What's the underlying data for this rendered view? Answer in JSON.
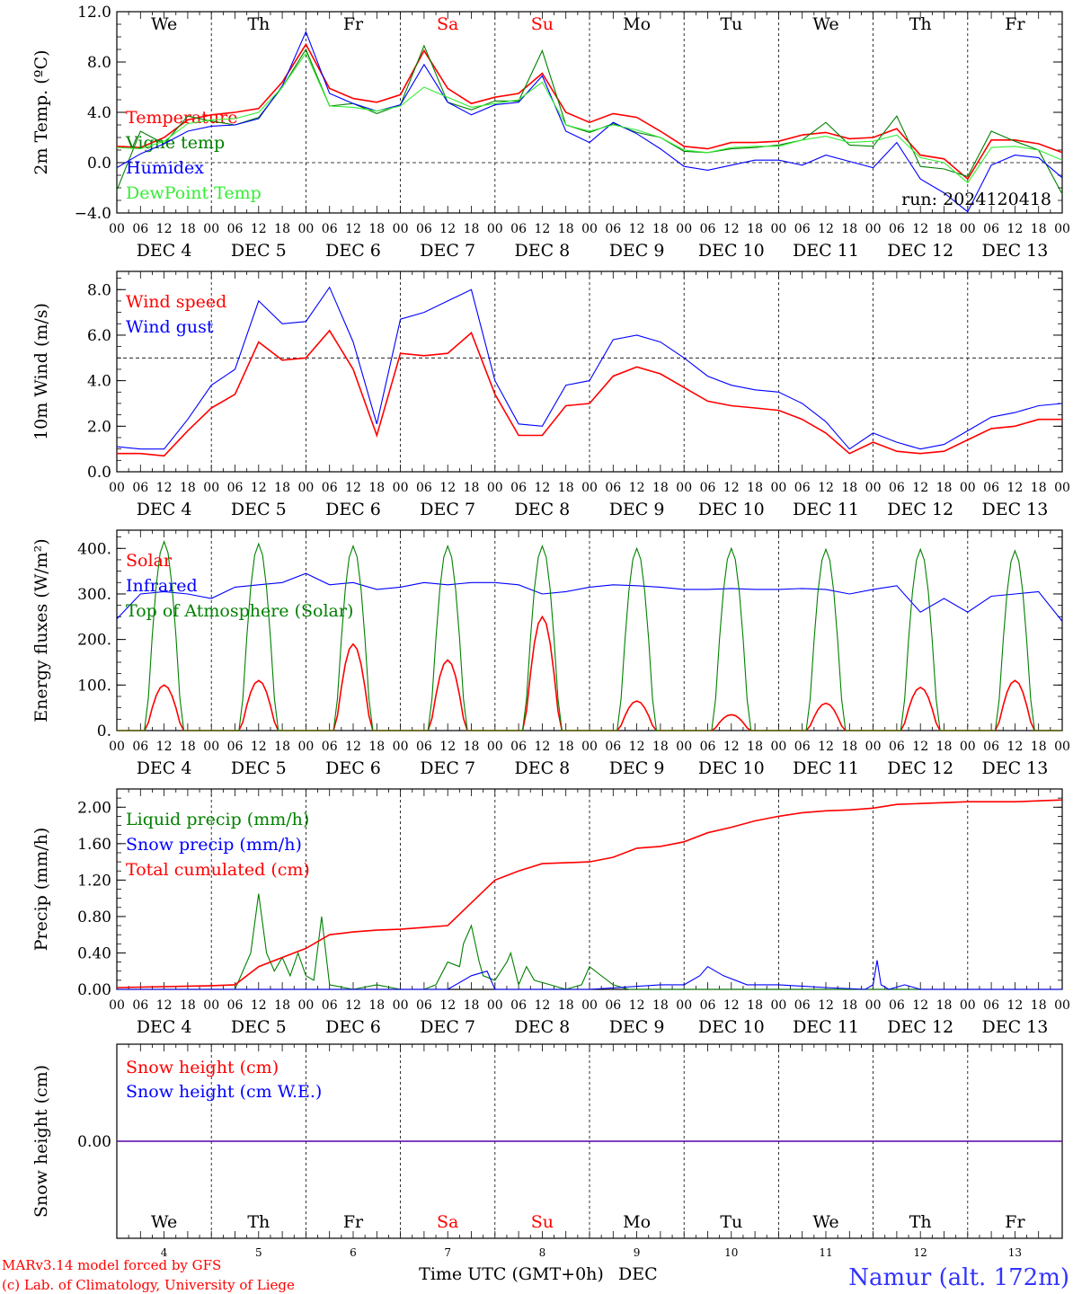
{
  "station_label": "Namur (alt. 172m)",
  "run_label": "run: 2024120418",
  "credits": [
    "MARv3.14 model forced by GFS",
    "(c) Lab. of Climatology, University of Liege"
  ],
  "xaxis_label": "Time UTC (GMT+0h)",
  "month_label": "DEC",
  "days": [
    "DEC 4",
    "DEC 5",
    "DEC 6",
    "DEC 7",
    "DEC 8",
    "DEC 9",
    "DEC 10",
    "DEC 11",
    "DEC 12",
    "DEC 13"
  ],
  "day_numbers": [
    "4",
    "5",
    "6",
    "7",
    "8",
    "9",
    "10",
    "11",
    "12",
    "13"
  ],
  "weekdays": [
    "We",
    "Th",
    "Fr",
    "Sa",
    "Su",
    "Mo",
    "Tu",
    "We",
    "Th",
    "Fr"
  ],
  "hour_ticks": [
    "00",
    "06",
    "12",
    "18"
  ],
  "end_tick": "00",
  "colors": {
    "weekday": "#000000",
    "weekend": "#ff0000",
    "red": "#ff0000",
    "darkgreen": "#008000",
    "blue": "#0000ff",
    "lightgreen": "#33ee33",
    "station": "#3333ff"
  },
  "chart_data": [
    {
      "type": "line",
      "ylabel": "2m Temp. (ºC)",
      "ylim": [
        -4,
        12
      ],
      "yticks": [
        "-4.0",
        "0.0",
        "4.0",
        "8.0",
        "12.0"
      ],
      "reference_line": 0,
      "x_unit": "hours since DEC 4 00 UTC",
      "x": [
        0,
        6,
        12,
        18,
        24,
        30,
        36,
        42,
        48,
        54,
        60,
        66,
        72,
        78,
        84,
        90,
        96,
        102,
        108,
        114,
        120,
        126,
        132,
        138,
        144,
        150,
        156,
        162,
        168,
        174,
        180,
        186,
        192,
        198,
        204,
        210,
        216,
        222,
        228,
        234,
        240
      ],
      "series": [
        {
          "name": "Temperature",
          "color": "red",
          "values": [
            1.3,
            1.2,
            2.0,
            3.4,
            3.8,
            4.0,
            4.3,
            6.4,
            9.4,
            5.9,
            5.1,
            4.8,
            5.4,
            8.9,
            5.9,
            4.7,
            5.2,
            5.5,
            7.1,
            4.0,
            3.2,
            3.9,
            3.6,
            2.5,
            1.3,
            1.1,
            1.6,
            1.6,
            1.7,
            2.2,
            2.4,
            1.9,
            2.0,
            2.7,
            0.6,
            0.3,
            -1.3,
            1.8,
            1.8,
            1.5,
            0.8
          ]
        },
        {
          "name": "Vigne temp",
          "color": "darkgreen",
          "values": [
            -2.2,
            2.5,
            1.5,
            3.7,
            3.3,
            3.0,
            3.6,
            6.0,
            9.0,
            4.5,
            4.7,
            3.9,
            4.6,
            9.3,
            4.8,
            4.2,
            4.9,
            4.9,
            8.9,
            3.0,
            2.4,
            3.1,
            2.4,
            2.0,
            0.9,
            0.8,
            1.1,
            1.2,
            1.4,
            1.8,
            3.2,
            1.4,
            1.3,
            3.7,
            -0.3,
            -0.5,
            -1.1,
            2.5,
            1.7,
            1.0,
            -2.5
          ]
        },
        {
          "name": "Humidex",
          "color": "blue",
          "values": [
            -0.4,
            0.7,
            1.5,
            2.5,
            2.9,
            3.0,
            3.5,
            6.1,
            10.4,
            5.5,
            4.7,
            4.1,
            4.6,
            7.8,
            4.8,
            3.8,
            4.6,
            4.8,
            6.9,
            2.5,
            1.6,
            3.2,
            2.3,
            1.1,
            -0.3,
            -0.6,
            -0.2,
            0.2,
            0.2,
            -0.2,
            0.6,
            0.1,
            -0.4,
            1.6,
            -1.3,
            -2.4,
            -3.9,
            -0.2,
            0.6,
            0.4,
            -1.2
          ]
        },
        {
          "name": "DewPoint Temp",
          "color": "lightgreen",
          "values": [
            1.2,
            1.1,
            1.7,
            3.1,
            3.4,
            3.5,
            4.0,
            6.0,
            8.7,
            4.5,
            4.4,
            4.1,
            4.5,
            6.0,
            5.2,
            4.4,
            4.7,
            5.0,
            6.4,
            3.0,
            2.5,
            3.0,
            2.6,
            2.0,
            1.0,
            0.8,
            1.2,
            1.3,
            1.3,
            1.8,
            2.1,
            1.6,
            1.7,
            2.2,
            0.4,
            0.0,
            -1.6,
            1.2,
            1.3,
            1.0,
            0.2
          ]
        }
      ]
    },
    {
      "type": "line",
      "ylabel": "10m Wind (m/s)",
      "ylim": [
        0,
        8.8
      ],
      "yticks": [
        "0.0",
        "2.0",
        "4.0",
        "6.0",
        "8.0"
      ],
      "reference_line": 5,
      "x_unit": "hours since DEC 4 00 UTC",
      "x": [
        0,
        6,
        12,
        18,
        24,
        30,
        36,
        42,
        48,
        54,
        60,
        66,
        72,
        78,
        84,
        90,
        96,
        102,
        108,
        114,
        120,
        126,
        132,
        138,
        144,
        150,
        156,
        162,
        168,
        174,
        180,
        186,
        192,
        198,
        204,
        210,
        216,
        222,
        228,
        234,
        240
      ],
      "series": [
        {
          "name": "Wind speed",
          "color": "red",
          "values": [
            0.8,
            0.8,
            0.7,
            1.8,
            2.8,
            3.4,
            5.7,
            4.9,
            5.0,
            6.2,
            4.5,
            1.6,
            5.2,
            5.1,
            5.2,
            6.1,
            3.4,
            1.6,
            1.6,
            2.9,
            3.0,
            4.2,
            4.6,
            4.3,
            3.7,
            3.1,
            2.9,
            2.8,
            2.7,
            2.3,
            1.7,
            0.8,
            1.3,
            0.9,
            0.8,
            0.9,
            1.4,
            1.9,
            2.0,
            2.3,
            2.3
          ]
        },
        {
          "name": "Wind gust",
          "color": "blue",
          "values": [
            1.1,
            1.0,
            1.0,
            2.3,
            3.8,
            4.5,
            7.5,
            6.5,
            6.6,
            8.1,
            5.7,
            2.1,
            6.7,
            7.0,
            7.5,
            8.0,
            4.0,
            2.1,
            2.0,
            3.8,
            4.0,
            5.8,
            6.0,
            5.7,
            5.0,
            4.2,
            3.8,
            3.6,
            3.5,
            3.0,
            2.2,
            1.0,
            1.7,
            1.3,
            1.0,
            1.2,
            1.8,
            2.4,
            2.6,
            2.9,
            3.0
          ]
        }
      ]
    },
    {
      "type": "line",
      "ylabel": "Energy fluxes (W/m²)",
      "ylim": [
        0,
        440
      ],
      "yticks": [
        "0.",
        "100.",
        "200.",
        "300.",
        "400."
      ],
      "x_unit": "hours since DEC 4 00 UTC",
      "series": [
        {
          "name": "Solar",
          "color": "red",
          "day_peaks": [
            100,
            110,
            190,
            155,
            250,
            65,
            35,
            60,
            95,
            110
          ]
        },
        {
          "name": "Infrared",
          "color": "blue",
          "x": [
            0,
            6,
            12,
            18,
            24,
            30,
            36,
            42,
            48,
            54,
            60,
            66,
            72,
            78,
            84,
            90,
            96,
            102,
            108,
            114,
            120,
            126,
            132,
            138,
            144,
            150,
            156,
            162,
            168,
            174,
            180,
            186,
            192,
            198,
            204,
            210,
            216,
            222,
            228,
            234,
            240
          ],
          "values": [
            245,
            300,
            305,
            300,
            290,
            315,
            320,
            325,
            345,
            320,
            325,
            310,
            315,
            325,
            320,
            325,
            325,
            320,
            300,
            305,
            315,
            320,
            318,
            315,
            310,
            310,
            312,
            310,
            310,
            312,
            310,
            300,
            310,
            318,
            260,
            290,
            260,
            295,
            300,
            305,
            240
          ]
        },
        {
          "name": "Top of Atmosphere (Solar)",
          "color": "darkgreen",
          "day_peaks": [
            415,
            410,
            405,
            405,
            405,
            400,
            400,
            398,
            398,
            395
          ]
        }
      ]
    },
    {
      "type": "line",
      "ylabel": "Precip (mm/h)",
      "ylim": [
        0,
        2.2
      ],
      "yticks": [
        "0.00",
        "0.40",
        "0.80",
        "1.20",
        "1.60",
        "2.00"
      ],
      "x_unit": "hours since DEC 4 00 UTC",
      "series": [
        {
          "name": "Liquid precip (mm/h)",
          "color": "darkgreen",
          "x": [
            0,
            30,
            34,
            36,
            38,
            40,
            42,
            44,
            46,
            48,
            50,
            52,
            54,
            60,
            66,
            72,
            78,
            81,
            84,
            87,
            88,
            90,
            92,
            93,
            96,
            99,
            100,
            102,
            104,
            106,
            110,
            114,
            118,
            120,
            126,
            130,
            132,
            144,
            168,
            192,
            216,
            240
          ],
          "values": [
            0,
            0,
            0.4,
            1.05,
            0.4,
            0.2,
            0.35,
            0.15,
            0.4,
            0.15,
            0.1,
            0.8,
            0.05,
            0,
            0.05,
            0,
            0,
            0.05,
            0.3,
            0.25,
            0.5,
            0.7,
            0.3,
            0.15,
            0.1,
            0.3,
            0.4,
            0.05,
            0.25,
            0.1,
            0.05,
            0,
            0.05,
            0.25,
            0.05,
            0,
            0,
            0,
            0,
            0,
            0,
            0
          ]
        },
        {
          "name": "Snow precip (mm/h)",
          "color": "blue",
          "x": [
            0,
            84,
            90,
            94,
            96,
            120,
            138,
            144,
            148,
            150,
            154,
            160,
            168,
            180,
            190,
            192,
            193,
            194,
            196,
            200,
            204,
            240
          ],
          "values": [
            0,
            0,
            0.15,
            0.2,
            0,
            0,
            0.05,
            0.05,
            0.15,
            0.25,
            0.15,
            0.05,
            0.05,
            0.02,
            0,
            0.05,
            0.32,
            0.05,
            0,
            0.05,
            0,
            0
          ]
        },
        {
          "name": "Total cumulated (cm)",
          "color": "red",
          "x": [
            0,
            24,
            30,
            36,
            42,
            48,
            54,
            60,
            66,
            72,
            78,
            84,
            90,
            96,
            102,
            108,
            114,
            120,
            126,
            132,
            138,
            144,
            150,
            156,
            162,
            168,
            174,
            180,
            186,
            192,
            198,
            204,
            210,
            216,
            222,
            228,
            234,
            240
          ],
          "values": [
            0.02,
            0.04,
            0.05,
            0.25,
            0.35,
            0.45,
            0.6,
            0.63,
            0.65,
            0.66,
            0.68,
            0.7,
            0.95,
            1.2,
            1.3,
            1.38,
            1.39,
            1.4,
            1.45,
            1.55,
            1.57,
            1.62,
            1.72,
            1.78,
            1.85,
            1.9,
            1.94,
            1.96,
            1.97,
            1.99,
            2.03,
            2.04,
            2.05,
            2.06,
            2.06,
            2.06,
            2.07,
            2.08
          ]
        }
      ]
    },
    {
      "type": "line",
      "ylabel": "Snow height (cm)",
      "ylim": [
        -1,
        1
      ],
      "yticks": [
        "0.00"
      ],
      "x_unit": "hours since DEC 4 00 UTC",
      "series": [
        {
          "name": "Snow height (cm)",
          "color": "red",
          "x": [
            0,
            240
          ],
          "values": [
            0,
            0
          ]
        },
        {
          "name": "Snow height (cm W.E.)",
          "color": "blue",
          "x": [
            0,
            240
          ],
          "values": [
            0,
            0
          ]
        }
      ]
    }
  ]
}
